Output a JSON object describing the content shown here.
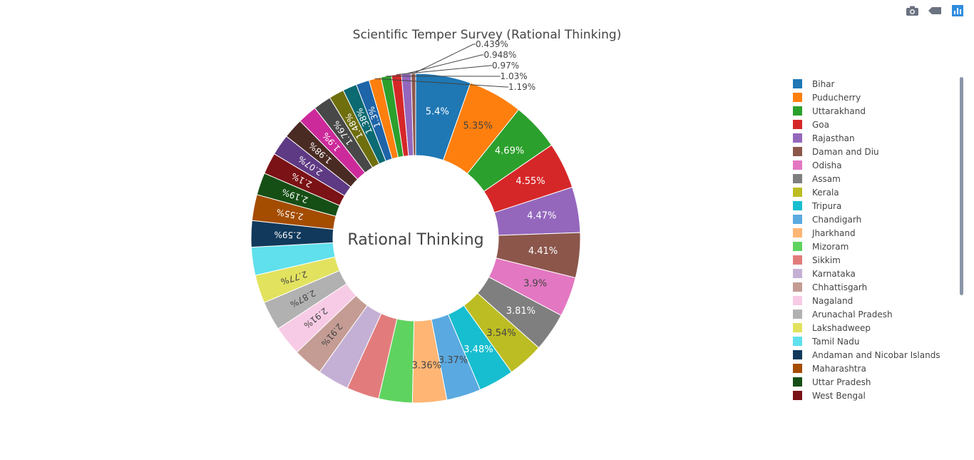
{
  "toolbar": {
    "icons": [
      "camera-icon",
      "tag-icon",
      "plotly-bar-icon"
    ]
  },
  "chart_data": {
    "type": "pie",
    "hole": true,
    "title": "Scientific Temper Survey (Rational Thinking)",
    "center_text": "Rational Thinking",
    "legend_position": "right",
    "slices": [
      {
        "name": "Bihar",
        "percent": 5.4,
        "label": "5.4%",
        "color": "#1f77b4"
      },
      {
        "name": "Puducherry",
        "percent": 5.35,
        "label": "5.35%",
        "color": "#ff7f0e"
      },
      {
        "name": "Uttarakhand",
        "percent": 4.69,
        "label": "4.69%",
        "color": "#2ca02c"
      },
      {
        "name": "Goa",
        "percent": 4.55,
        "label": "4.55%",
        "color": "#d62728"
      },
      {
        "name": "Rajasthan",
        "percent": 4.47,
        "label": "4.47%",
        "color": "#9467bd"
      },
      {
        "name": "Daman and Diu",
        "percent": 4.41,
        "label": "4.41%",
        "color": "#8c564b"
      },
      {
        "name": "Odisha",
        "percent": 3.9,
        "label": "3.9%",
        "color": "#e377c2"
      },
      {
        "name": "Assam",
        "percent": 3.81,
        "label": "3.81%",
        "color": "#7f7f7f"
      },
      {
        "name": "Kerala",
        "percent": 3.54,
        "label": "3.54%",
        "color": "#bcbd22"
      },
      {
        "name": "Tripura",
        "percent": 3.48,
        "label": "3.48%",
        "color": "#17becf"
      },
      {
        "name": "Chandigarh",
        "percent": 3.37,
        "label": "3.37%",
        "color": "#5aa9e0"
      },
      {
        "name": "Jharkhand",
        "percent": 3.36,
        "label": "3.36%",
        "color": "#ffb574"
      },
      {
        "name": "Mizoram",
        "percent": 3.3,
        "label": "",
        "color": "#5fd35f"
      },
      {
        "name": "Sikkim",
        "percent": 3.2,
        "label": "",
        "color": "#e27c7c"
      },
      {
        "name": "Karnataka",
        "percent": 3.1,
        "label": "",
        "color": "#c5b0d5"
      },
      {
        "name": "Chhattisgarh",
        "percent": 2.91,
        "label": "2.91%",
        "color": "#c49c94"
      },
      {
        "name": "Nagaland",
        "percent": 2.91,
        "label": "2.91%",
        "color": "#f7cbe5"
      },
      {
        "name": "Arunachal Pradesh",
        "percent": 2.87,
        "label": "2.87%",
        "color": "#b1b1b1"
      },
      {
        "name": "Lakshadweep",
        "percent": 2.77,
        "label": "2.77%",
        "color": "#e2e25f"
      },
      {
        "name": "Tamil Nadu",
        "percent": 2.75,
        "label": "",
        "color": "#5fe0ec"
      },
      {
        "name": "Andaman and Nicobar Islands",
        "percent": 2.59,
        "label": "2.59%",
        "color": "#11395b"
      },
      {
        "name": "Maharashtra",
        "percent": 2.55,
        "label": "2.55%",
        "color": "#a44c00"
      },
      {
        "name": "Uttar Pradesh",
        "percent": 2.19,
        "label": "2.19%",
        "color": "#164f16"
      },
      {
        "name": "West Bengal",
        "percent": 2.1,
        "label": "2.1%",
        "color": "#7b1215"
      },
      {
        "name": "",
        "percent": 2.07,
        "label": "2.07%",
        "color": "#5f3a84"
      },
      {
        "name": "",
        "percent": 1.98,
        "label": "1.98%",
        "color": "#4a2b24"
      },
      {
        "name": "",
        "percent": 1.9,
        "label": "1.9%",
        "color": "#cc2a9a"
      },
      {
        "name": "",
        "percent": 1.76,
        "label": "1.76%",
        "color": "#484848"
      },
      {
        "name": "",
        "percent": 1.48,
        "label": "1.48%",
        "color": "#6f6f0e"
      },
      {
        "name": "",
        "percent": 1.38,
        "label": "1.38%",
        "color": "#0b6a72"
      },
      {
        "name": "",
        "percent": 1.3,
        "label": "1.3%",
        "color": "#1e64a8"
      },
      {
        "name": "",
        "percent": 1.19,
        "label": "1.19%",
        "color": "#ff7f0e"
      },
      {
        "name": "",
        "percent": 1.03,
        "label": "1.03%",
        "color": "#2ca02c"
      },
      {
        "name": "",
        "percent": 0.97,
        "label": "0.97%",
        "color": "#d62728"
      },
      {
        "name": "",
        "percent": 0.948,
        "label": "0.948%",
        "color": "#9467bd"
      },
      {
        "name": "",
        "percent": 0.439,
        "label": "0.439%",
        "color": "#8c564b"
      }
    ]
  }
}
